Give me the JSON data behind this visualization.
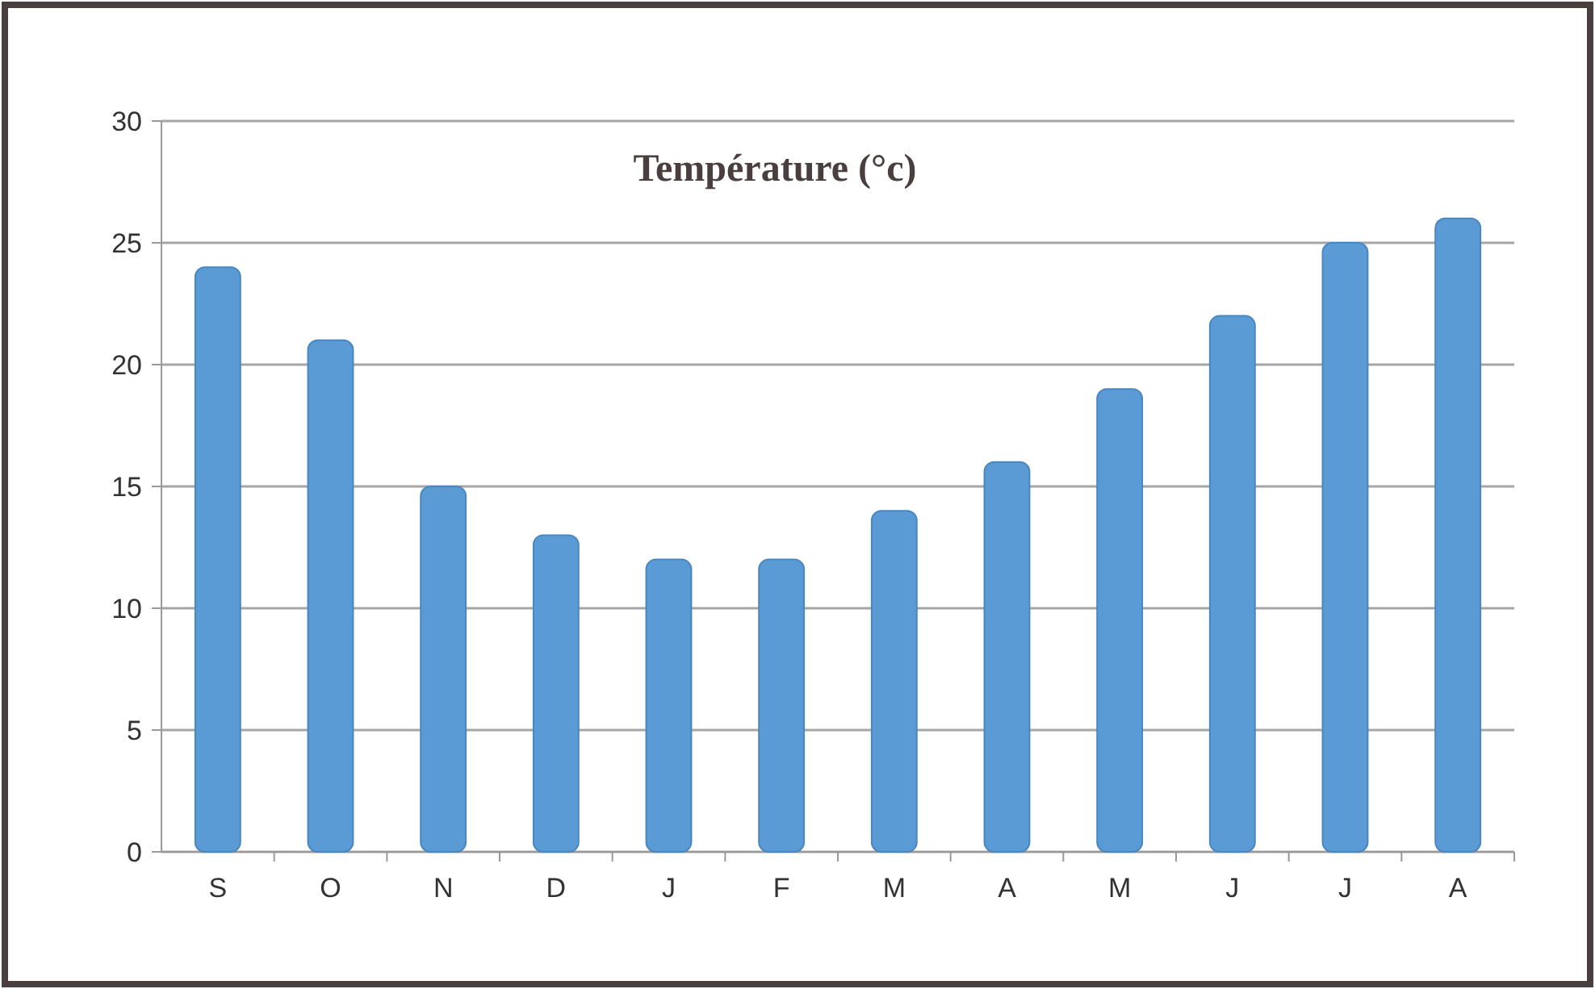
{
  "chart_data": {
    "type": "bar",
    "title": "Température (°c)",
    "categories": [
      "S",
      "O",
      "N",
      "D",
      "J",
      "F",
      "M",
      "A",
      "M",
      "J",
      "J",
      "A"
    ],
    "values": [
      24,
      21,
      15,
      13,
      12,
      12,
      14,
      16,
      19,
      22,
      25,
      26
    ],
    "color": "#5b9bd5",
    "ylim": [
      0,
      30
    ],
    "yticks": [
      0,
      5,
      10,
      15,
      20,
      25,
      30
    ],
    "grid": "y"
  }
}
